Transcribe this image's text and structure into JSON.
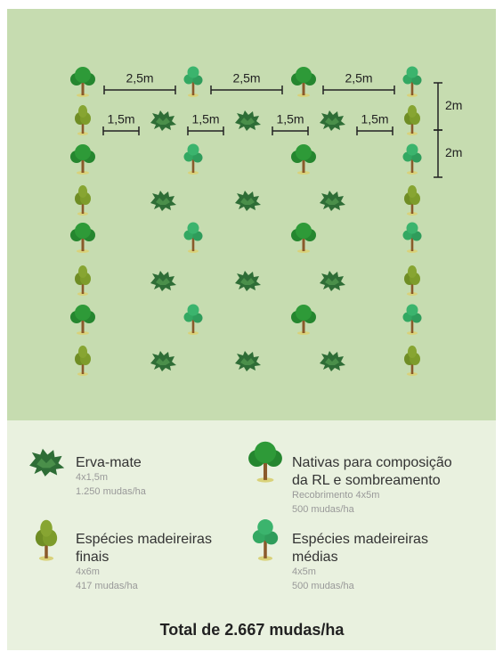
{
  "dimensions": {
    "row_spacing": [
      "2,5m",
      "2,5m",
      "2,5m"
    ],
    "erva_spacing": [
      "1,5m",
      "1,5m",
      "1,5m",
      "1,5m"
    ],
    "vertical": [
      "2m",
      "2m"
    ]
  },
  "legend": [
    {
      "title_lines": [
        "Erva-mate"
      ],
      "details": [
        "4x1,5m",
        "1.250 mudas/ha"
      ]
    },
    {
      "title_lines": [
        "Nativas para composição",
        "da RL e sombreamento"
      ],
      "details": [
        "Recobrimento 4x5m",
        "500 mudas/ha"
      ]
    },
    {
      "title_lines": [
        "Espécies madeireiras",
        "finais"
      ],
      "details": [
        "4x6m",
        "417 mudas/ha"
      ]
    },
    {
      "title_lines": [
        "Espécies madeireiras",
        "médias"
      ],
      "details": [
        "4x5m",
        "500 mudas/ha"
      ]
    }
  ],
  "total": "Total de 2.667 mudas/ha"
}
